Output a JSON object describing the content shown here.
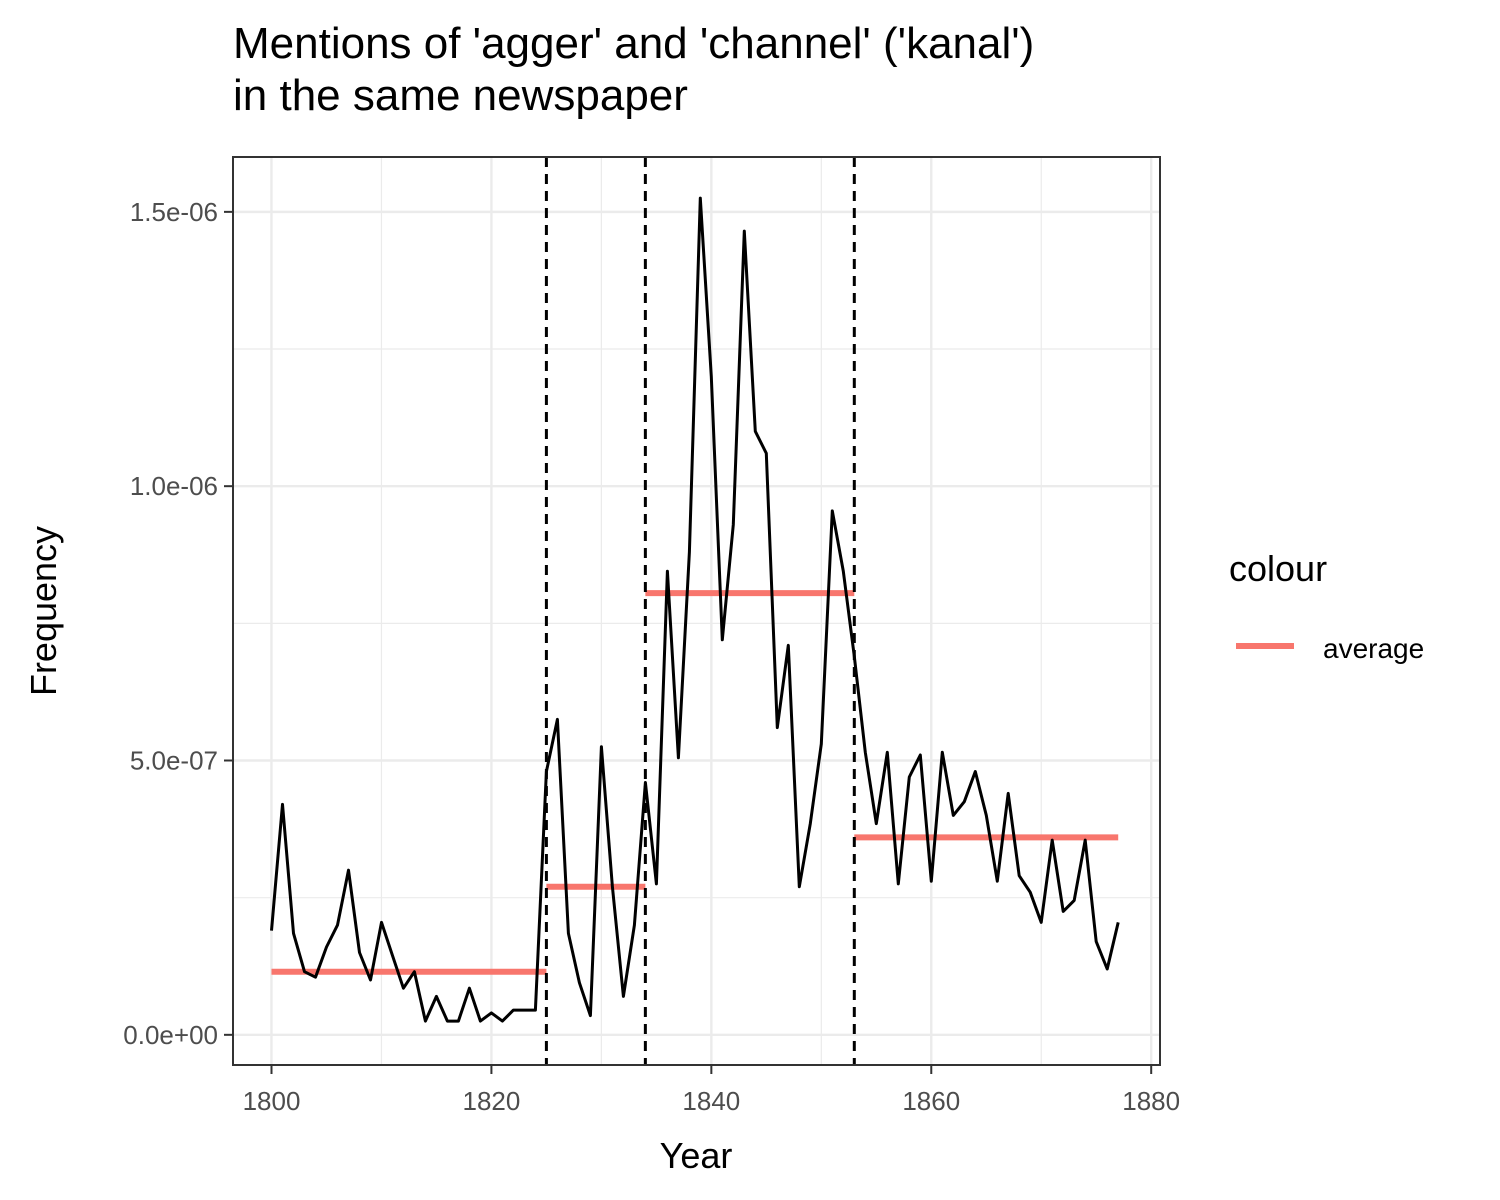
{
  "chart_data": {
    "type": "line",
    "title": "Mentions of 'agger' and 'channel' ('kanal')\nin the same newspaper",
    "xlabel": "Year",
    "ylabel": "Frequency",
    "xlim": [
      1796.5,
      1880.8
    ],
    "ylim": [
      -5.5e-08,
      1.6e-06
    ],
    "x_ticks": [
      1800,
      1820,
      1840,
      1860,
      1880
    ],
    "x_tick_labels": [
      "1800",
      "1820",
      "1840",
      "1860",
      "1880"
    ],
    "y_ticks": [
      0,
      5e-07,
      1e-06,
      1.5e-06
    ],
    "y_tick_labels": [
      "0.0e+00",
      "5.0e-07",
      "1.0e-06",
      "1.5e-06"
    ],
    "grid": true,
    "legend": {
      "title": "colour",
      "position": "right",
      "entries": [
        {
          "label": "average",
          "color": "#F8766D"
        }
      ]
    },
    "series": [
      {
        "type": "line",
        "color": "#000000",
        "x": [
          1800,
          1801,
          1802,
          1803,
          1804,
          1805,
          1806,
          1807,
          1808,
          1809,
          1810,
          1811,
          1812,
          1813,
          1814,
          1815,
          1816,
          1817,
          1818,
          1819,
          1820,
          1821,
          1822,
          1823,
          1824,
          1825,
          1826,
          1827,
          1828,
          1829,
          1830,
          1831,
          1832,
          1833,
          1834,
          1835,
          1836,
          1837,
          1838,
          1839,
          1840,
          1841,
          1842,
          1843,
          1844,
          1845,
          1846,
          1847,
          1848,
          1849,
          1850,
          1851,
          1852,
          1853,
          1854,
          1855,
          1856,
          1857,
          1858,
          1859,
          1860,
          1861,
          1862,
          1863,
          1864,
          1865,
          1866,
          1867,
          1868,
          1869,
          1870,
          1871,
          1872,
          1873,
          1874,
          1875,
          1876,
          1877
        ],
        "y": [
          1.9e-07,
          4.2e-07,
          1.85e-07,
          1.15e-07,
          1.05e-07,
          1.6e-07,
          2e-07,
          3e-07,
          1.5e-07,
          1e-07,
          2.05e-07,
          1.45e-07,
          8.5e-08,
          1.15e-07,
          2.5e-08,
          7e-08,
          2.5e-08,
          2.5e-08,
          8.5e-08,
          2.5e-08,
          4e-08,
          2.5e-08,
          4.5e-08,
          4.5e-08,
          4.5e-08,
          4.8e-07,
          5.75e-07,
          1.85e-07,
          9.5e-08,
          3.5e-08,
          5.25e-07,
          2.7e-07,
          7e-08,
          2e-07,
          4.6e-07,
          2.75e-07,
          8.45e-07,
          5.05e-07,
          8.8e-07,
          1.525e-06,
          1.2e-06,
          7.2e-07,
          9.3e-07,
          1.465e-06,
          1.1e-06,
          1.06e-06,
          5.6e-07,
          7.1e-07,
          2.7e-07,
          3.85e-07,
          5.3e-07,
          9.55e-07,
          8.45e-07,
          6.9e-07,
          5.15e-07,
          3.85e-07,
          5.15e-07,
          2.75e-07,
          4.7e-07,
          5.1e-07,
          2.8e-07,
          5.15e-07,
          4e-07,
          4.25e-07,
          4.8e-07,
          4e-07,
          2.8e-07,
          4.4e-07,
          2.9e-07,
          2.6e-07,
          2.05e-07,
          3.55e-07,
          2.25e-07,
          2.45e-07,
          3.55e-07,
          1.7e-07,
          1.2e-07,
          2.05e-07
        ]
      }
    ],
    "averages": [
      {
        "label": "average",
        "x_start": 1800,
        "x_end": 1825,
        "value": 1.15e-07
      },
      {
        "label": "average",
        "x_start": 1825,
        "x_end": 1834,
        "value": 2.7e-07
      },
      {
        "label": "average",
        "x_start": 1834,
        "x_end": 1853,
        "value": 8.05e-07
      },
      {
        "label": "average",
        "x_start": 1853,
        "x_end": 1877,
        "value": 3.6e-07
      }
    ],
    "breakpoints": [
      1825,
      1834,
      1853
    ]
  }
}
